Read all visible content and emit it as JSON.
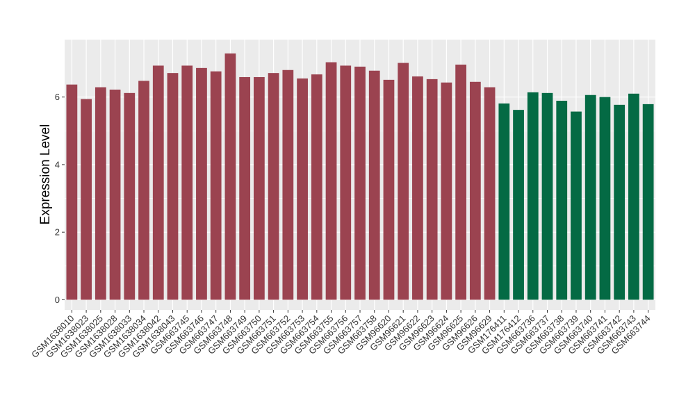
{
  "chart_data": {
    "type": "bar",
    "ylabel": "Expression Level",
    "xlabel": "",
    "ylim": [
      -0.3,
      7.7
    ],
    "yticks": [
      0,
      2,
      4,
      6
    ],
    "grid": true,
    "legend": "none",
    "colors": {
      "group1": "#9b4350",
      "group2": "#046a44",
      "panel": "#ebebeb",
      "grid": "#ffffff"
    },
    "categories": [
      "GSM1638010",
      "GSM1638023",
      "GSM1638025",
      "GSM1638028",
      "GSM1638033",
      "GSM1638034",
      "GSM1638042",
      "GSM1638043",
      "GSM663745",
      "GSM663746",
      "GSM663747",
      "GSM663748",
      "GSM663749",
      "GSM663750",
      "GSM663751",
      "GSM663752",
      "GSM663753",
      "GSM663754",
      "GSM663755",
      "GSM663756",
      "GSM663757",
      "GSM663758",
      "GSM96620",
      "GSM96621",
      "GSM96622",
      "GSM96623",
      "GSM96624",
      "GSM96625",
      "GSM96626",
      "GSM96629",
      "GSM176411",
      "GSM176412",
      "GSM663736",
      "GSM663737",
      "GSM663738",
      "GSM663739",
      "GSM663740",
      "GSM663741",
      "GSM663742",
      "GSM663743",
      "GSM663744"
    ],
    "values": [
      6.37,
      5.94,
      6.29,
      6.22,
      6.12,
      6.48,
      6.93,
      6.71,
      6.93,
      6.86,
      6.76,
      7.29,
      6.59,
      6.59,
      6.71,
      6.8,
      6.55,
      6.67,
      7.03,
      6.93,
      6.9,
      6.78,
      6.51,
      7.01,
      6.61,
      6.53,
      6.43,
      6.96,
      6.45,
      6.29,
      5.81,
      5.62,
      6.14,
      6.12,
      5.89,
      5.57,
      6.06,
      6.0,
      5.77,
      6.1,
      5.79
    ],
    "groups": [
      1,
      1,
      1,
      1,
      1,
      1,
      1,
      1,
      1,
      1,
      1,
      1,
      1,
      1,
      1,
      1,
      1,
      1,
      1,
      1,
      1,
      1,
      1,
      1,
      1,
      1,
      1,
      1,
      1,
      1,
      2,
      2,
      2,
      2,
      2,
      2,
      2,
      2,
      2,
      2,
      2
    ]
  }
}
